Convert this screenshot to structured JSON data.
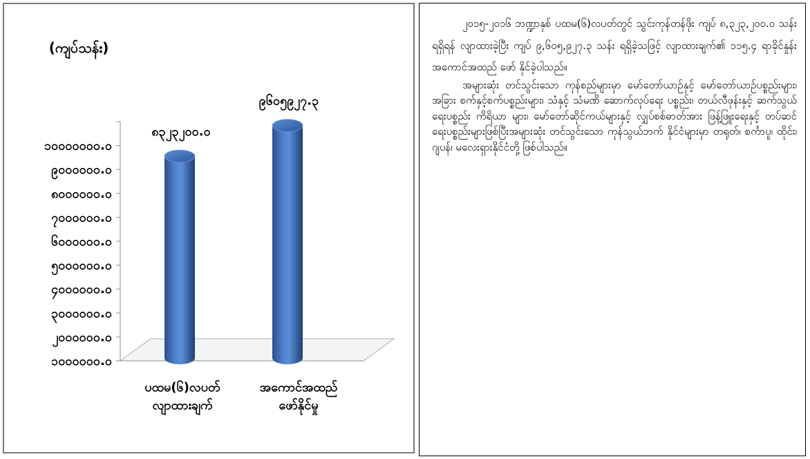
{
  "chart_data": {
    "type": "bar",
    "unit_label": "(ကျပ်သန်း)",
    "categories": [
      "ပထမ(၆)လပတ်\nလျာထားချက်",
      "အကောင်အထည်\nဖော်နိုင်မှု"
    ],
    "values": [
      8323200,
      9605927.3
    ],
    "data_labels": [
      "၈၃၂၃၂၀၀.၀",
      "၉၆၀၅၉၂၇.၃"
    ],
    "y_ticks": [
      0,
      1000000,
      2000000,
      3000000,
      4000000,
      5000000,
      6000000,
      7000000,
      8000000,
      9000000,
      10000000
    ],
    "y_tick_labels": [
      "၁၀၀၀၀၀၀.၀",
      "၂၀၀၀၀၀၀.၀",
      "၃၀၀၀၀၀၀.၀",
      "၄၀၀၀၀၀၀.၀",
      "၅၀၀၀၀၀၀.၀",
      "၆၀၀၀၀၀၀.၀",
      "၇၀၀၀၀၀၀.၀",
      "၈၀၀၀၀၀၀.၀",
      "၉၀၀၀၀၀၀.၀",
      "၁၀၀၀၀၀၀၀.၀"
    ],
    "ylim": [
      0,
      10000000
    ],
    "grid": false,
    "style": "3d-cylinder",
    "bar_color": "#3a68b0"
  },
  "text": {
    "paragraph1": "၂၀၁၅-၂၀၁၆ ဘဏ္ဍာနှစ် ပထမ(၆)လပတ်တွင် သွင်းကုန်တန်ဖိုး ကျပ် ၈,၃၂၃,၂၀၀.၀ သန်း ရရှိရန် လျာထားခဲ့ပြီး ကျပ် ၉,၆၀၅,၉၂၇.၃ သန်း ရရှိခဲ့သဖြင့် လျာထားချက်၏ ၁၁၅.၄ ရာခိုင်နှုန်း အကောင်အထည် ဖော် နိုင်ခဲ့ပါသည်။",
    "paragraph2": "အများဆုံး တင်သွင်းသော ကုန်စည်များမှာ မော်တော်ယာဉ်နှင့် မော်တော်ယာဉ်ပစ္စည်းများ၊ အခြား စက်နှင့်စက်ပစ္စည်းများ၊ သံနှင့် သံမဏိ ဆောက်လုပ်ရေး ပစ္စည်း၊ တယ်လီဖုန်းနှင့် ဆက်သွယ်ရေးပစ္စည်း ကိရိယာ များ၊ မော်တော်ဆိုင်ကယ်များနှင့် လျှပ်စစ်ဓာတ်အား ဖြန့်ဖြူးရေးနှင့် တပ်ဆင်ရေးပစ္စည်းများဖြစ်ပြီးအများဆုံး တင်သွင်းသော ကုန်သွယ်ဘက် နိုင်ငံများမှာ တရုတ်၊ စင်္ကာပူ၊ ထိုင်း၊ဂျပန်၊ မလေးရှားနိုင်ငံတို့ ဖြစ်ပါသည်။"
  }
}
